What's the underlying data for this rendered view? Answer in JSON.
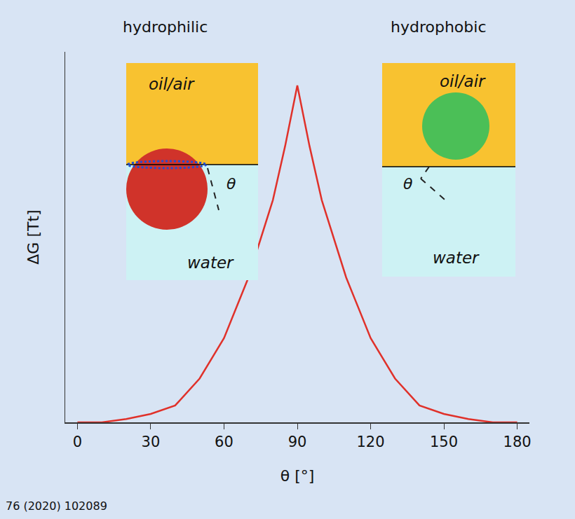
{
  "chart_data": {
    "type": "line",
    "x": [
      0,
      10,
      20,
      30,
      40,
      50,
      60,
      70,
      80,
      85,
      90,
      95,
      100,
      110,
      120,
      130,
      140,
      150,
      160,
      170,
      180
    ],
    "values": [
      0,
      0,
      0.01,
      0.025,
      0.05,
      0.13,
      0.25,
      0.43,
      0.66,
      0.82,
      1.0,
      0.82,
      0.66,
      0.43,
      0.25,
      0.13,
      0.05,
      0.025,
      0.01,
      0,
      0
    ],
    "color": "#e0312a",
    "xlim": [
      -5,
      185
    ],
    "ylim": [
      0,
      1.1
    ],
    "xticks": [
      0,
      30,
      60,
      90,
      120,
      150,
      180
    ],
    "tick_labels": "x",
    "grid": false,
    "x_label": "θ [°]",
    "y_label": "ΔG [Tt]",
    "annotations": [
      "hydrophilic",
      "hydrophobic"
    ],
    "insets": [
      {
        "upper": "oil/air",
        "lower": "water",
        "angle": "θ"
      },
      {
        "upper": "oil/air",
        "lower": "water",
        "angle": "θ"
      }
    ],
    "source": "76 (2020) 102089"
  }
}
